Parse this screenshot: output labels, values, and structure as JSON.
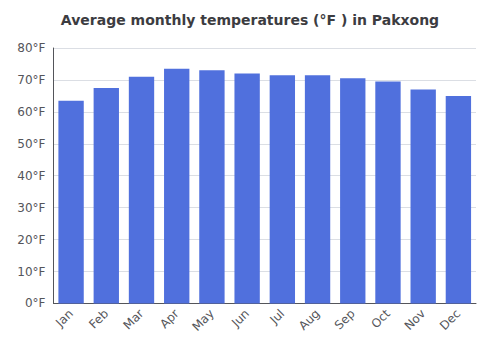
{
  "chart_data": {
    "type": "bar",
    "title": "Average monthly temperatures (°F ) in Pakxong",
    "categories": [
      "Jan",
      "Feb",
      "Mar",
      "Apr",
      "May",
      "Jun",
      "Jul",
      "Aug",
      "Sep",
      "Oct",
      "Nov",
      "Dec"
    ],
    "values": [
      63.5,
      67.5,
      71.0,
      73.5,
      73.0,
      72.0,
      71.5,
      71.5,
      70.5,
      69.5,
      67.0,
      65.0
    ],
    "ylim": [
      0,
      80
    ],
    "yticks": [
      {
        "value": 0,
        "label": "0°F"
      },
      {
        "value": 10,
        "label": "10°F"
      },
      {
        "value": 20,
        "label": "20°F"
      },
      {
        "value": 30,
        "label": "30°F"
      },
      {
        "value": 40,
        "label": "40°F"
      },
      {
        "value": 50,
        "label": "50°F"
      },
      {
        "value": 60,
        "label": "60°F"
      },
      {
        "value": 70,
        "label": "70°F"
      },
      {
        "value": 80,
        "label": "80°F"
      }
    ],
    "grid": true
  }
}
